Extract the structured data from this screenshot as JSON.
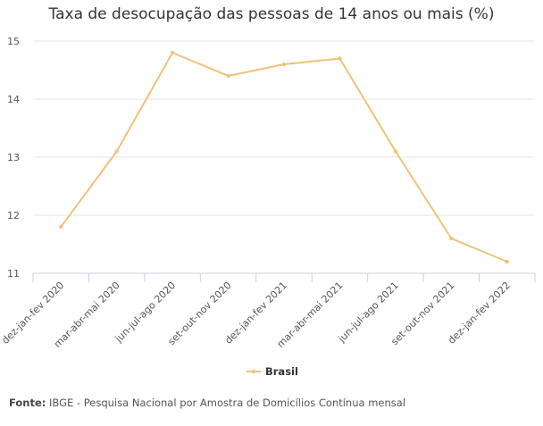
{
  "chart_data": {
    "type": "line",
    "title": "Taxa de desocupação das pessoas de 14 anos ou mais (%)",
    "categories": [
      "dez-jan-fev 2020",
      "mar-abr-mai 2020",
      "jun-jul-ago 2020",
      "set-out-nov 2020",
      "dez-jan-fev 2021",
      "mar-abr-mai 2021",
      "jun-jul-ago 2021",
      "set-out-nov 2021",
      "dez-jan-fev 2022"
    ],
    "series": [
      {
        "name": "Brasil",
        "color": "#f0c27b",
        "values": [
          11.8,
          13.1,
          14.8,
          14.4,
          14.6,
          14.7,
          13.1,
          11.6,
          11.2
        ]
      }
    ],
    "ylim": [
      11,
      15
    ],
    "yticks": [
      11,
      12,
      13,
      14,
      15
    ],
    "grid": true,
    "legend": "bottom-center"
  },
  "source": {
    "label": "Fonte:",
    "text": "IBGE - Pesquisa Nacional por Amostra de Domicílios Contínua mensal"
  }
}
